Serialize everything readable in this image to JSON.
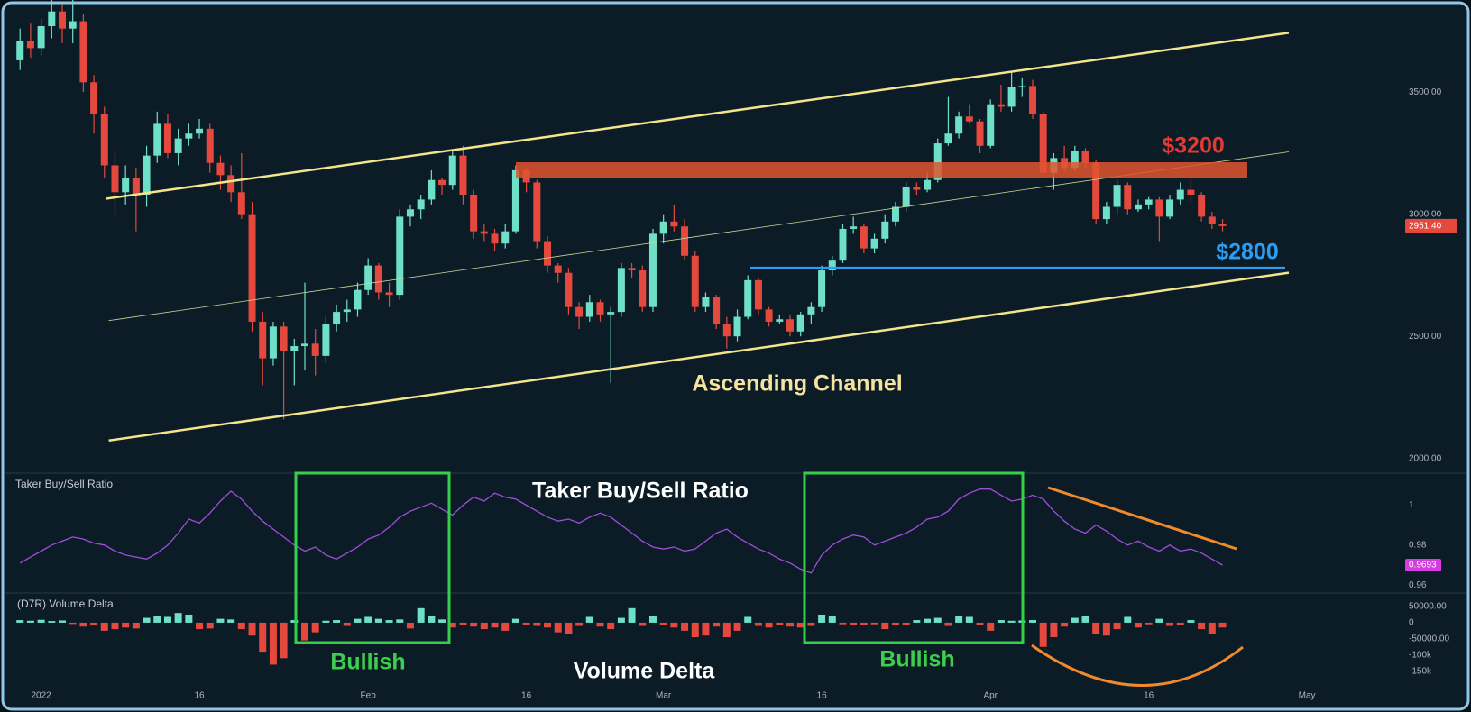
{
  "chart_data": {
    "type": "candlestick",
    "x": [
      -1,
      0,
      1,
      2,
      3,
      4,
      5,
      6,
      7,
      8,
      9,
      10,
      11,
      12,
      13,
      14,
      15,
      16,
      17,
      18,
      19,
      20,
      21,
      22,
      23,
      24,
      25,
      26,
      27,
      28,
      29,
      30,
      31,
      32,
      33,
      34,
      35,
      36,
      37,
      38,
      39,
      40,
      41,
      42,
      43,
      44,
      45,
      46,
      47,
      48,
      49,
      50,
      51,
      52,
      53,
      54,
      55,
      56,
      57,
      58,
      59,
      60,
      61,
      62,
      63,
      64,
      65,
      66,
      67,
      68,
      69,
      70,
      71,
      72,
      73,
      74,
      75,
      76,
      77,
      78,
      79,
      80,
      81,
      82,
      83,
      84,
      85,
      86,
      87,
      88,
      89,
      90,
      91,
      92,
      93,
      94,
      95,
      96,
      97,
      98,
      99,
      100,
      101,
      102,
      103,
      104,
      105,
      106,
      107,
      108,
      109,
      110,
      111,
      112,
      113
    ],
    "xlim": [
      -2.9,
      129.2
    ],
    "xticks": [
      {
        "value": 1,
        "label": "2022"
      },
      16,
      {
        "value": 32,
        "label": "Feb"
      },
      {
        "value": 47,
        "label": "16"
      },
      {
        "value": 60,
        "label": "Mar"
      },
      {
        "value": 75,
        "label": "16"
      },
      {
        "value": 91,
        "label": "Apr"
      },
      {
        "value": 106,
        "label": "16"
      },
      {
        "value": 121,
        "label": "May"
      }
    ],
    "ylim": [
      1940,
      3840
    ],
    "yticks": [
      {
        "value": 2000,
        "label": "2000.00"
      },
      {
        "value": 2500,
        "label": "2500.00"
      },
      {
        "value": 3000,
        "label": "3000.00"
      },
      {
        "value": 3500,
        "label": "3500.00"
      }
    ],
    "up_color": "#6fe0c8",
    "down_color": "#e5483d",
    "candles": [
      [
        3630,
        3760,
        3590,
        3710
      ],
      [
        3710,
        3780,
        3640,
        3680
      ],
      [
        3680,
        3800,
        3650,
        3770
      ],
      [
        3770,
        3880,
        3720,
        3830
      ],
      [
        3830,
        3860,
        3700,
        3760
      ],
      [
        3760,
        3880,
        3700,
        3790
      ],
      [
        3790,
        3820,
        3500,
        3540
      ],
      [
        3540,
        3570,
        3330,
        3410
      ],
      [
        3410,
        3440,
        3150,
        3200
      ],
      [
        3200,
        3260,
        3000,
        3090
      ],
      [
        3090,
        3200,
        3040,
        3150
      ],
      [
        3150,
        3190,
        2930,
        3080
      ],
      [
        3080,
        3280,
        3030,
        3240
      ],
      [
        3240,
        3420,
        3210,
        3370
      ],
      [
        3370,
        3410,
        3230,
        3250
      ],
      [
        3250,
        3350,
        3200,
        3310
      ],
      [
        3310,
        3370,
        3280,
        3330
      ],
      [
        3330,
        3390,
        3310,
        3350
      ],
      [
        3350,
        3370,
        3170,
        3210
      ],
      [
        3210,
        3240,
        3100,
        3160
      ],
      [
        3160,
        3200,
        3050,
        3090
      ],
      [
        3090,
        3250,
        2980,
        3000
      ],
      [
        3000,
        3050,
        2520,
        2560
      ],
      [
        2560,
        2600,
        2300,
        2410
      ],
      [
        2410,
        2560,
        2380,
        2540
      ],
      [
        2540,
        2560,
        2160,
        2440
      ],
      [
        2440,
        2490,
        2300,
        2460
      ],
      [
        2460,
        2720,
        2360,
        2470
      ],
      [
        2470,
        2530,
        2340,
        2420
      ],
      [
        2420,
        2580,
        2390,
        2550
      ],
      [
        2550,
        2630,
        2520,
        2600
      ],
      [
        2600,
        2650,
        2560,
        2610
      ],
      [
        2610,
        2720,
        2580,
        2690
      ],
      [
        2690,
        2820,
        2670,
        2790
      ],
      [
        2790,
        2800,
        2650,
        2680
      ],
      [
        2680,
        2720,
        2620,
        2670
      ],
      [
        2670,
        3020,
        2650,
        2990
      ],
      [
        2990,
        3040,
        2950,
        3020
      ],
      [
        3020,
        3080,
        2980,
        3060
      ],
      [
        3060,
        3180,
        3040,
        3140
      ],
      [
        3140,
        3150,
        3080,
        3120
      ],
      [
        3120,
        3260,
        3100,
        3240
      ],
      [
        3240,
        3280,
        3040,
        3080
      ],
      [
        3080,
        3100,
        2900,
        2930
      ],
      [
        2930,
        2960,
        2890,
        2920
      ],
      [
        2920,
        2940,
        2850,
        2880
      ],
      [
        2880,
        2960,
        2860,
        2930
      ],
      [
        2930,
        3200,
        2920,
        3180
      ],
      [
        3180,
        3190,
        3090,
        3130
      ],
      [
        3130,
        3140,
        2860,
        2890
      ],
      [
        2890,
        2910,
        2760,
        2790
      ],
      [
        2790,
        2800,
        2720,
        2760
      ],
      [
        2760,
        2780,
        2590,
        2620
      ],
      [
        2620,
        2640,
        2530,
        2580
      ],
      [
        2580,
        2670,
        2560,
        2640
      ],
      [
        2640,
        2650,
        2560,
        2590
      ],
      [
        2590,
        2620,
        2310,
        2600
      ],
      [
        2600,
        2800,
        2580,
        2780
      ],
      [
        2780,
        2800,
        2740,
        2770
      ],
      [
        2770,
        2790,
        2600,
        2620
      ],
      [
        2620,
        2940,
        2600,
        2920
      ],
      [
        2920,
        3000,
        2880,
        2970
      ],
      [
        2970,
        3040,
        2930,
        2950
      ],
      [
        2950,
        2980,
        2810,
        2830
      ],
      [
        2830,
        2850,
        2600,
        2620
      ],
      [
        2620,
        2680,
        2600,
        2660
      ],
      [
        2660,
        2670,
        2530,
        2550
      ],
      [
        2550,
        2580,
        2450,
        2500
      ],
      [
        2500,
        2610,
        2480,
        2580
      ],
      [
        2580,
        2750,
        2570,
        2730
      ],
      [
        2730,
        2740,
        2590,
        2610
      ],
      [
        2610,
        2620,
        2540,
        2560
      ],
      [
        2560,
        2590,
        2550,
        2570
      ],
      [
        2570,
        2590,
        2500,
        2520
      ],
      [
        2520,
        2600,
        2500,
        2590
      ],
      [
        2590,
        2640,
        2550,
        2620
      ],
      [
        2620,
        2790,
        2600,
        2770
      ],
      [
        2770,
        2830,
        2750,
        2810
      ],
      [
        2810,
        2960,
        2800,
        2940
      ],
      [
        2940,
        2990,
        2920,
        2950
      ],
      [
        2950,
        2960,
        2840,
        2860
      ],
      [
        2860,
        2920,
        2840,
        2900
      ],
      [
        2900,
        3000,
        2880,
        2970
      ],
      [
        2970,
        3050,
        2950,
        3030
      ],
      [
        3030,
        3130,
        3010,
        3110
      ],
      [
        3110,
        3130,
        3080,
        3100
      ],
      [
        3100,
        3170,
        3090,
        3140
      ],
      [
        3140,
        3310,
        3130,
        3290
      ],
      [
        3290,
        3480,
        3280,
        3330
      ],
      [
        3330,
        3420,
        3310,
        3400
      ],
      [
        3400,
        3450,
        3370,
        3380
      ],
      [
        3380,
        3390,
        3250,
        3280
      ],
      [
        3280,
        3470,
        3270,
        3450
      ],
      [
        3450,
        3530,
        3420,
        3440
      ],
      [
        3440,
        3580,
        3420,
        3520
      ],
      [
        3520,
        3560,
        3480,
        3525
      ],
      [
        3525,
        3550,
        3390,
        3410
      ],
      [
        3410,
        3420,
        3150,
        3170
      ],
      [
        3170,
        3250,
        3100,
        3230
      ],
      [
        3230,
        3280,
        3170,
        3190
      ],
      [
        3190,
        3280,
        3180,
        3260
      ],
      [
        3260,
        3270,
        3190,
        3210
      ],
      [
        3210,
        3220,
        2960,
        2980
      ],
      [
        2980,
        3050,
        2960,
        3030
      ],
      [
        3030,
        3140,
        3000,
        3120
      ],
      [
        3120,
        3130,
        3000,
        3020
      ],
      [
        3020,
        3060,
        3010,
        3040
      ],
      [
        3040,
        3070,
        3020,
        3060
      ],
      [
        3060,
        3070,
        2890,
        2990
      ],
      [
        2990,
        3080,
        2980,
        3060
      ],
      [
        3060,
        3130,
        3040,
        3100
      ],
      [
        3100,
        3180,
        3050,
        3080
      ],
      [
        3080,
        3090,
        2970,
        2990
      ],
      [
        2990,
        3010,
        2940,
        2960
      ],
      [
        2960,
        2980,
        2930,
        2951.4
      ]
    ],
    "price_tag": "2951.40",
    "panes": [
      {
        "type": "line",
        "title": "Taker Buy/Sell Ratio",
        "color": "#a04ddb",
        "tag": "0.9693",
        "tag_color": "#d43be0",
        "ylim": [
          0.956,
          1.016
        ],
        "yticks": [
          0.96,
          0.98,
          1
        ],
        "values": [
          0.971,
          0.974,
          0.977,
          0.98,
          0.982,
          0.984,
          0.983,
          0.981,
          0.98,
          0.977,
          0.975,
          0.974,
          0.973,
          0.976,
          0.98,
          0.986,
          0.993,
          0.991,
          0.996,
          1.002,
          1.007,
          1.003,
          0.997,
          0.992,
          0.988,
          0.984,
          0.98,
          0.977,
          0.979,
          0.975,
          0.973,
          0.976,
          0.979,
          0.983,
          0.985,
          0.989,
          0.994,
          0.997,
          0.999,
          1.001,
          0.998,
          0.995,
          1.0,
          1.004,
          1.002,
          1.006,
          1.004,
          1.003,
          1.0,
          0.997,
          0.994,
          0.992,
          0.993,
          0.991,
          0.994,
          0.996,
          0.994,
          0.99,
          0.986,
          0.982,
          0.979,
          0.978,
          0.979,
          0.977,
          0.978,
          0.982,
          0.986,
          0.988,
          0.984,
          0.981,
          0.978,
          0.976,
          0.973,
          0.971,
          0.968,
          0.966,
          0.975,
          0.98,
          0.983,
          0.985,
          0.984,
          0.98,
          0.982,
          0.984,
          0.986,
          0.989,
          0.993,
          0.994,
          0.997,
          1.003,
          1.006,
          1.008,
          1.008,
          1.005,
          1.002,
          1.003,
          1.005,
          1.003,
          0.997,
          0.992,
          0.988,
          0.986,
          0.99,
          0.987,
          0.983,
          0.98,
          0.982,
          0.979,
          0.977,
          0.98,
          0.977,
          0.978,
          0.976,
          0.973,
          0.97
        ]
      },
      {
        "type": "bar",
        "title": "(D7R) Volume Delta",
        "up_color": "#6fe0c8",
        "down_color": "#e5483d",
        "ylim": [
          -193000,
          92000
        ],
        "yticks": [
          {
            "value": 50000,
            "label": "50000.00"
          },
          0,
          {
            "value": -50000,
            "label": "-50000.00"
          },
          {
            "value": -100000,
            "label": "-100k"
          },
          {
            "value": -150000,
            "label": "-150k"
          }
        ],
        "values": [
          8000,
          6000,
          9000,
          5000,
          7000,
          -4000,
          -12000,
          -9000,
          -25000,
          -20000,
          -15000,
          -18000,
          15000,
          20000,
          18000,
          30000,
          25000,
          -20000,
          -18000,
          12000,
          10000,
          -20000,
          -40000,
          -90000,
          -130000,
          -110000,
          8000,
          -55000,
          -30000,
          6000,
          8000,
          -10000,
          12000,
          18000,
          12000,
          8000,
          10000,
          -18000,
          45000,
          20000,
          10000,
          -15000,
          -8000,
          -12000,
          -20000,
          -15000,
          -25000,
          12000,
          -8000,
          -10000,
          -15000,
          -30000,
          -35000,
          -10000,
          18000,
          -12000,
          -20000,
          15000,
          45000,
          -10000,
          20000,
          -8000,
          -15000,
          -25000,
          -45000,
          -40000,
          -12000,
          -45000,
          -25000,
          18000,
          -10000,
          -15000,
          -8000,
          -12000,
          -15000,
          -10000,
          25000,
          20000,
          -5000,
          -8000,
          -6000,
          -5000,
          -20000,
          -8000,
          -6000,
          8000,
          12000,
          15000,
          -10000,
          20000,
          18000,
          -8000,
          -25000,
          8000,
          6000,
          7000,
          8000,
          -75000,
          -45000,
          -12000,
          15000,
          20000,
          -35000,
          -40000,
          -20000,
          18000,
          -15000,
          -5000,
          12000,
          -10000,
          -8000,
          8000,
          -20000,
          -35000,
          -15000
        ]
      }
    ],
    "annotations": {
      "resistance": "$3200",
      "support": "$2800",
      "channel": "Ascending Channel",
      "ratio_title": "Taker Buy/Sell Ratio",
      "volume_title": "Volume Delta",
      "bullish": [
        "Bullish",
        "Bullish"
      ]
    }
  }
}
